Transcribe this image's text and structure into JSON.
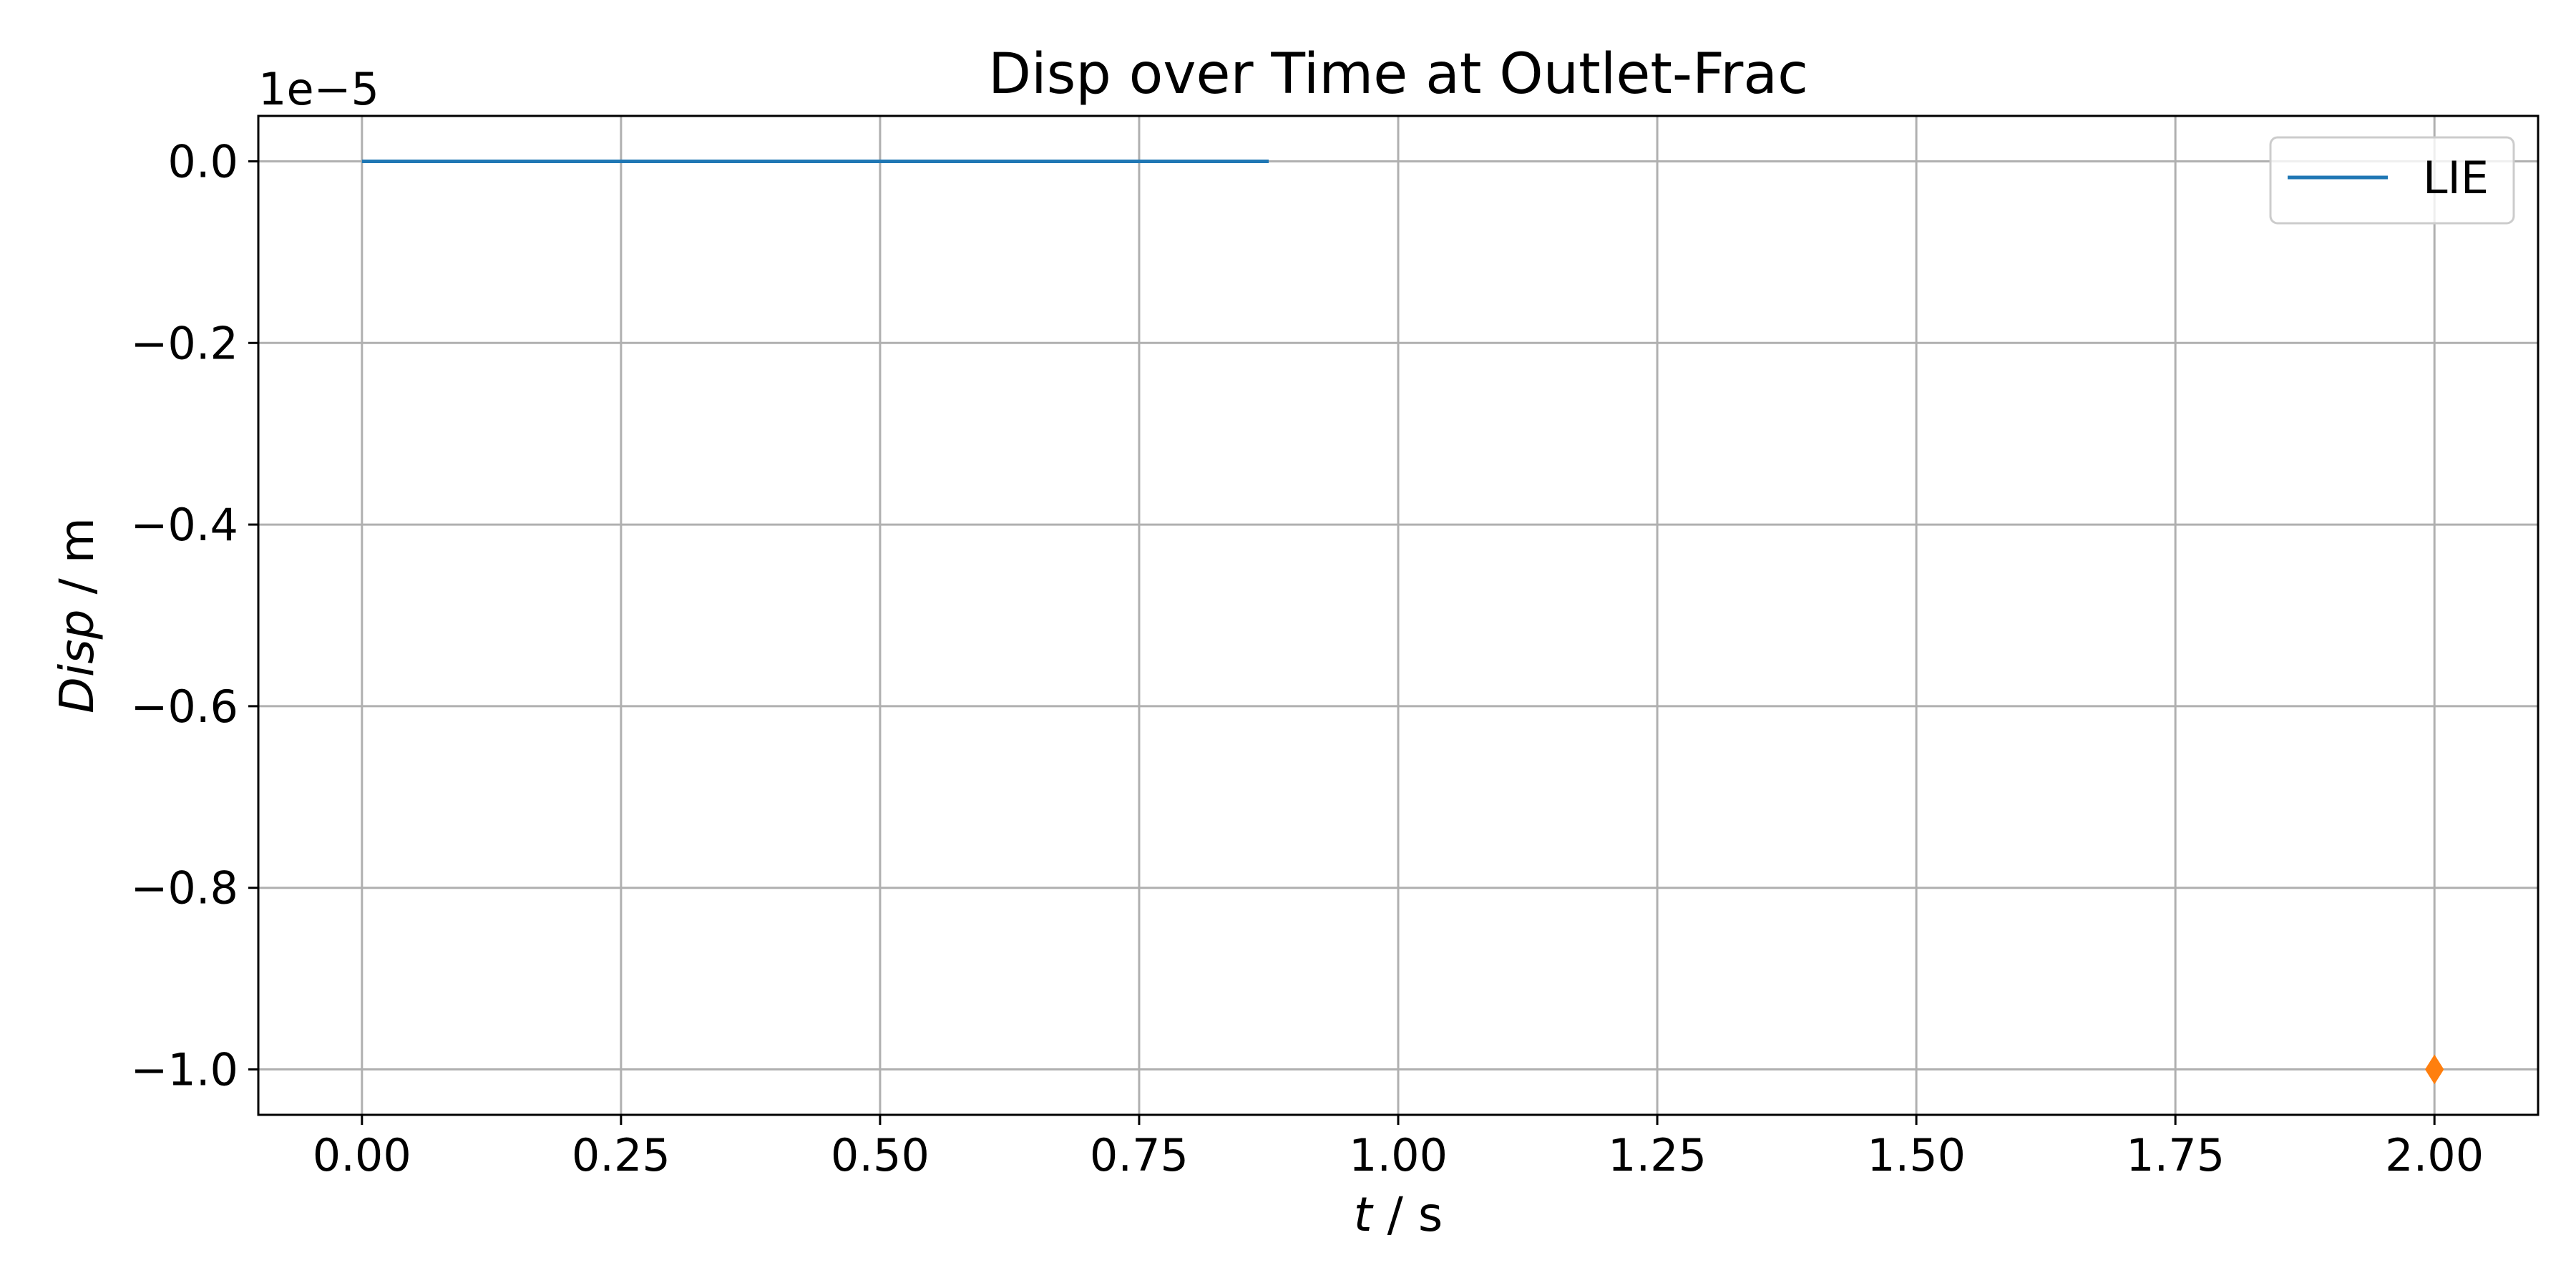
{
  "chart_data": {
    "type": "line",
    "title": "Disp over Time at Outlet-Frac",
    "xlabel": {
      "var": "t",
      "unit": " / s"
    },
    "ylabel": {
      "var": "Disp",
      "unit": " / m"
    },
    "y_offset_text": "1e−5",
    "xlim": [
      -0.1,
      2.1
    ],
    "ylim": [
      -1.05,
      0.05
    ],
    "y_scale_factor": 1e-05,
    "x_ticks": [
      0.0,
      0.25,
      0.5,
      0.75,
      1.0,
      1.25,
      1.5,
      1.75,
      2.0
    ],
    "x_tick_labels": [
      "0.00",
      "0.25",
      "0.50",
      "0.75",
      "1.00",
      "1.25",
      "1.50",
      "1.75",
      "2.00"
    ],
    "y_ticks": [
      0.0,
      -0.2,
      -0.4,
      -0.6,
      -0.8,
      -1.0
    ],
    "y_tick_labels": [
      "0.0",
      "−0.2",
      "−0.4",
      "−0.6",
      "−0.8",
      "−1.0"
    ],
    "grid": true,
    "legend_position": "top-right",
    "series": [
      {
        "name": "LIE",
        "color": "#1f77b4",
        "marker": "line",
        "x": [
          0.0,
          0.875
        ],
        "y": [
          0.0,
          0.0
        ]
      },
      {
        "color": "#ff7f0e",
        "marker": "diamond",
        "x": [
          2.0
        ],
        "y": [
          -1.0
        ]
      }
    ]
  }
}
